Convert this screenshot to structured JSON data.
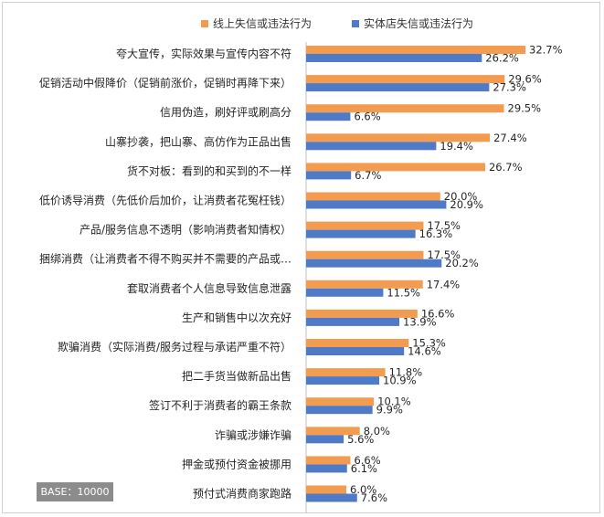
{
  "chart_data": {
    "type": "bar",
    "orientation": "horizontal",
    "title": "",
    "xlabel": "",
    "ylabel": "",
    "xlim": [
      0,
      35
    ],
    "grid": false,
    "legend_position": "top",
    "categories": [
      "夸大宣传，实际效果与宣传内容不符",
      "促销活动中假降价（促销前涨价，促销时再降下来）",
      "信用伪造，刷好评或刷高分",
      "山寨抄袭，把山寨、高仿作为正品出售",
      "货不对板：看到的和买到的不一样",
      "低价诱导消费（先低价后加价，让消费者花冤枉钱）",
      "产品/服务信息不透明（影响消费者知情权）",
      "捆绑消费（让消费者不得不购买并不需要的产品或…",
      "套取消费者个人信息导致信息泄露",
      "生产和销售中以次充好",
      "欺骗消费（实际消费/服务过程与承诺严重不符）",
      "把二手货当做新品出售",
      "签订不利于消费者的霸王条款",
      "诈骗或涉嫌诈骗",
      "押金或预付资金被挪用",
      "预付式消费商家跑路"
    ],
    "series": [
      {
        "name": "线上失信或违法行为",
        "color": "#F39C4F",
        "values": [
          32.7,
          29.6,
          29.5,
          27.4,
          26.7,
          20.0,
          17.5,
          17.5,
          17.4,
          16.6,
          15.3,
          11.8,
          10.1,
          8.0,
          6.6,
          6.0
        ],
        "labels": [
          "32.7%",
          "29.6%",
          "29.5%",
          "27.4%",
          "26.7%",
          "20.0%",
          "17.5%",
          "17.5%",
          "17.4%",
          "16.6%",
          "15.3%",
          "11.8%",
          "10.1%",
          "8.0%",
          "6.6%",
          "6.0%"
        ]
      },
      {
        "name": "实体店失信或违法行为",
        "color": "#4E7AC7",
        "values": [
          26.2,
          27.3,
          6.6,
          19.4,
          6.7,
          20.9,
          16.3,
          20.2,
          11.5,
          13.9,
          14.6,
          10.9,
          9.9,
          5.6,
          6.1,
          7.6
        ],
        "labels": [
          "26.2%",
          "27.3%",
          "6.6%",
          "19.4%",
          "6.7%",
          "20.9%",
          "16.3%",
          "20.2%",
          "11.5%",
          "13.9%",
          "14.6%",
          "10.9%",
          "9.9%",
          "5.6%",
          "6.1%",
          "7.6%"
        ]
      }
    ]
  },
  "base_label": "BASE：10000"
}
